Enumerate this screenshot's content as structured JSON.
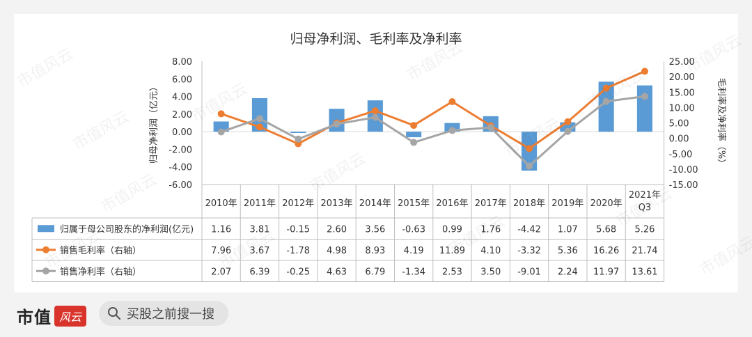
{
  "chart_data": {
    "type": "bar+line",
    "title": "归母净利润、毛利率及净利率",
    "ylabel_left": "归母净利润（亿元）",
    "ylabel_right": "毛利率及净利率（%）",
    "ylim_left": [
      -6,
      8
    ],
    "yticks_left": [
      "8.00",
      "6.00",
      "4.00",
      "2.00",
      "0.00",
      "-2.00",
      "-4.00",
      "-6.00"
    ],
    "ylim_right": [
      -15,
      25
    ],
    "yticks_right": [
      "25.00",
      "20.00",
      "15.00",
      "10.00",
      "5.00",
      "0.00",
      "-5.00",
      "-10.00",
      "-15.00"
    ],
    "categories": [
      "2010年",
      "2011年",
      "2012年",
      "2013年",
      "2014年",
      "2015年",
      "2016年",
      "2017年",
      "2018年",
      "2019年",
      "2020年",
      "2021年 Q3"
    ],
    "series": [
      {
        "name": "归属于母公司股东的净利润(亿元)",
        "type": "bar",
        "axis": "left",
        "color": "#5b9bd5",
        "values": [
          1.16,
          3.81,
          -0.15,
          2.6,
          3.56,
          -0.63,
          0.99,
          1.76,
          -4.42,
          1.07,
          5.68,
          5.26
        ],
        "labels": [
          "1.16",
          "3.81",
          "-0.15",
          "2.60",
          "3.56",
          "-0.63",
          "0.99",
          "1.76",
          "-4.42",
          "1.07",
          "5.68",
          "5.26"
        ]
      },
      {
        "name": "销售毛利率（右轴）",
        "type": "line",
        "axis": "right",
        "color": "#ed7d31",
        "values": [
          7.96,
          3.67,
          -1.78,
          4.98,
          8.93,
          4.19,
          11.89,
          4.1,
          -3.32,
          5.36,
          16.26,
          21.74
        ],
        "labels": [
          "7.96",
          "3.67",
          "-1.78",
          "4.98",
          "8.93",
          "4.19",
          "11.89",
          "4.10",
          "-3.32",
          "5.36",
          "16.26",
          "21.74"
        ]
      },
      {
        "name": "销售净利率（右轴）",
        "type": "line",
        "axis": "right",
        "color": "#a5a5a5",
        "values": [
          2.07,
          6.39,
          -0.25,
          4.63,
          6.79,
          -1.34,
          2.53,
          3.5,
          -9.01,
          2.24,
          11.97,
          13.61
        ],
        "labels": [
          "2.07",
          "6.39",
          "-0.25",
          "4.63",
          "6.79",
          "-1.34",
          "2.53",
          "3.50",
          "-9.01",
          "2.24",
          "11.97",
          "13.61"
        ]
      }
    ],
    "legend": "table-left",
    "grid": false
  },
  "watermark": "市值风云",
  "footer": {
    "brand": "市值",
    "logo_text": "风云",
    "search_placeholder": "买股之前搜一搜",
    "search_icon": "search-icon"
  }
}
